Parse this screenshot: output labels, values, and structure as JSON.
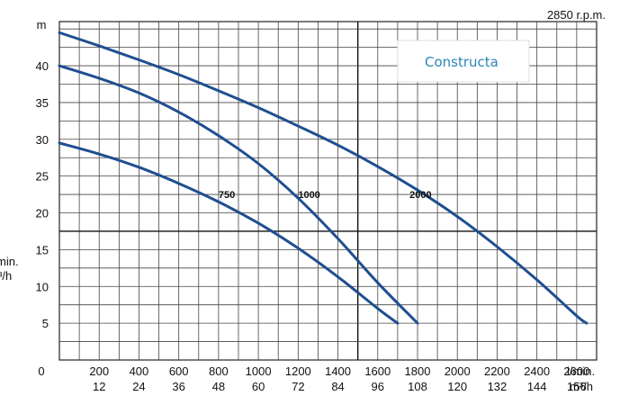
{
  "chart_data": {
    "type": "line",
    "rpm_label": "2850 r.p.m.",
    "brand": "Constructa",
    "y_unit": "m",
    "y_ticks": [
      "5",
      "10",
      "15",
      "20",
      "25",
      "30",
      "35",
      "40"
    ],
    "origin_label": "0",
    "x_ticks_primary": [
      "200",
      "400",
      "600",
      "800",
      "1000",
      "1200",
      "1400",
      "1600",
      "1800",
      "2000",
      "2200",
      "2400",
      "2600"
    ],
    "x_ticks_secondary": [
      "12",
      "24",
      "36",
      "48",
      "60",
      "72",
      "84",
      "96",
      "108",
      "120",
      "132",
      "144",
      "156"
    ],
    "x_unit_primary": "l/min.",
    "x_unit_secondary": "m³/h",
    "left_cut_labels": [
      "min.",
      "³/h"
    ],
    "xlim": [
      0,
      2700
    ],
    "ylim": [
      0,
      46
    ],
    "grid": true,
    "series": [
      {
        "name": "750",
        "x": [
          0,
          200,
          400,
          600,
          800,
          1000,
          1200,
          1400,
          1600,
          1700
        ],
        "y": [
          29.5,
          28.0,
          26.2,
          24.0,
          21.5,
          18.6,
          15.2,
          11.3,
          7.0,
          5.0
        ]
      },
      {
        "name": "1000",
        "x": [
          0,
          200,
          400,
          600,
          800,
          1000,
          1200,
          1400,
          1600,
          1800
        ],
        "y": [
          40.0,
          38.3,
          36.3,
          33.7,
          30.5,
          26.7,
          22.0,
          16.5,
          10.5,
          5.0
        ]
      },
      {
        "name": "2000",
        "x": [
          0,
          200,
          400,
          600,
          800,
          1000,
          1200,
          1400,
          1600,
          1800,
          2000,
          2200,
          2400,
          2600,
          2650
        ],
        "y": [
          44.5,
          42.7,
          40.8,
          38.8,
          36.6,
          34.3,
          31.8,
          29.2,
          26.3,
          23.1,
          19.5,
          15.4,
          10.9,
          6.0,
          5.0
        ]
      }
    ],
    "curve_color": "#1f4e91"
  }
}
